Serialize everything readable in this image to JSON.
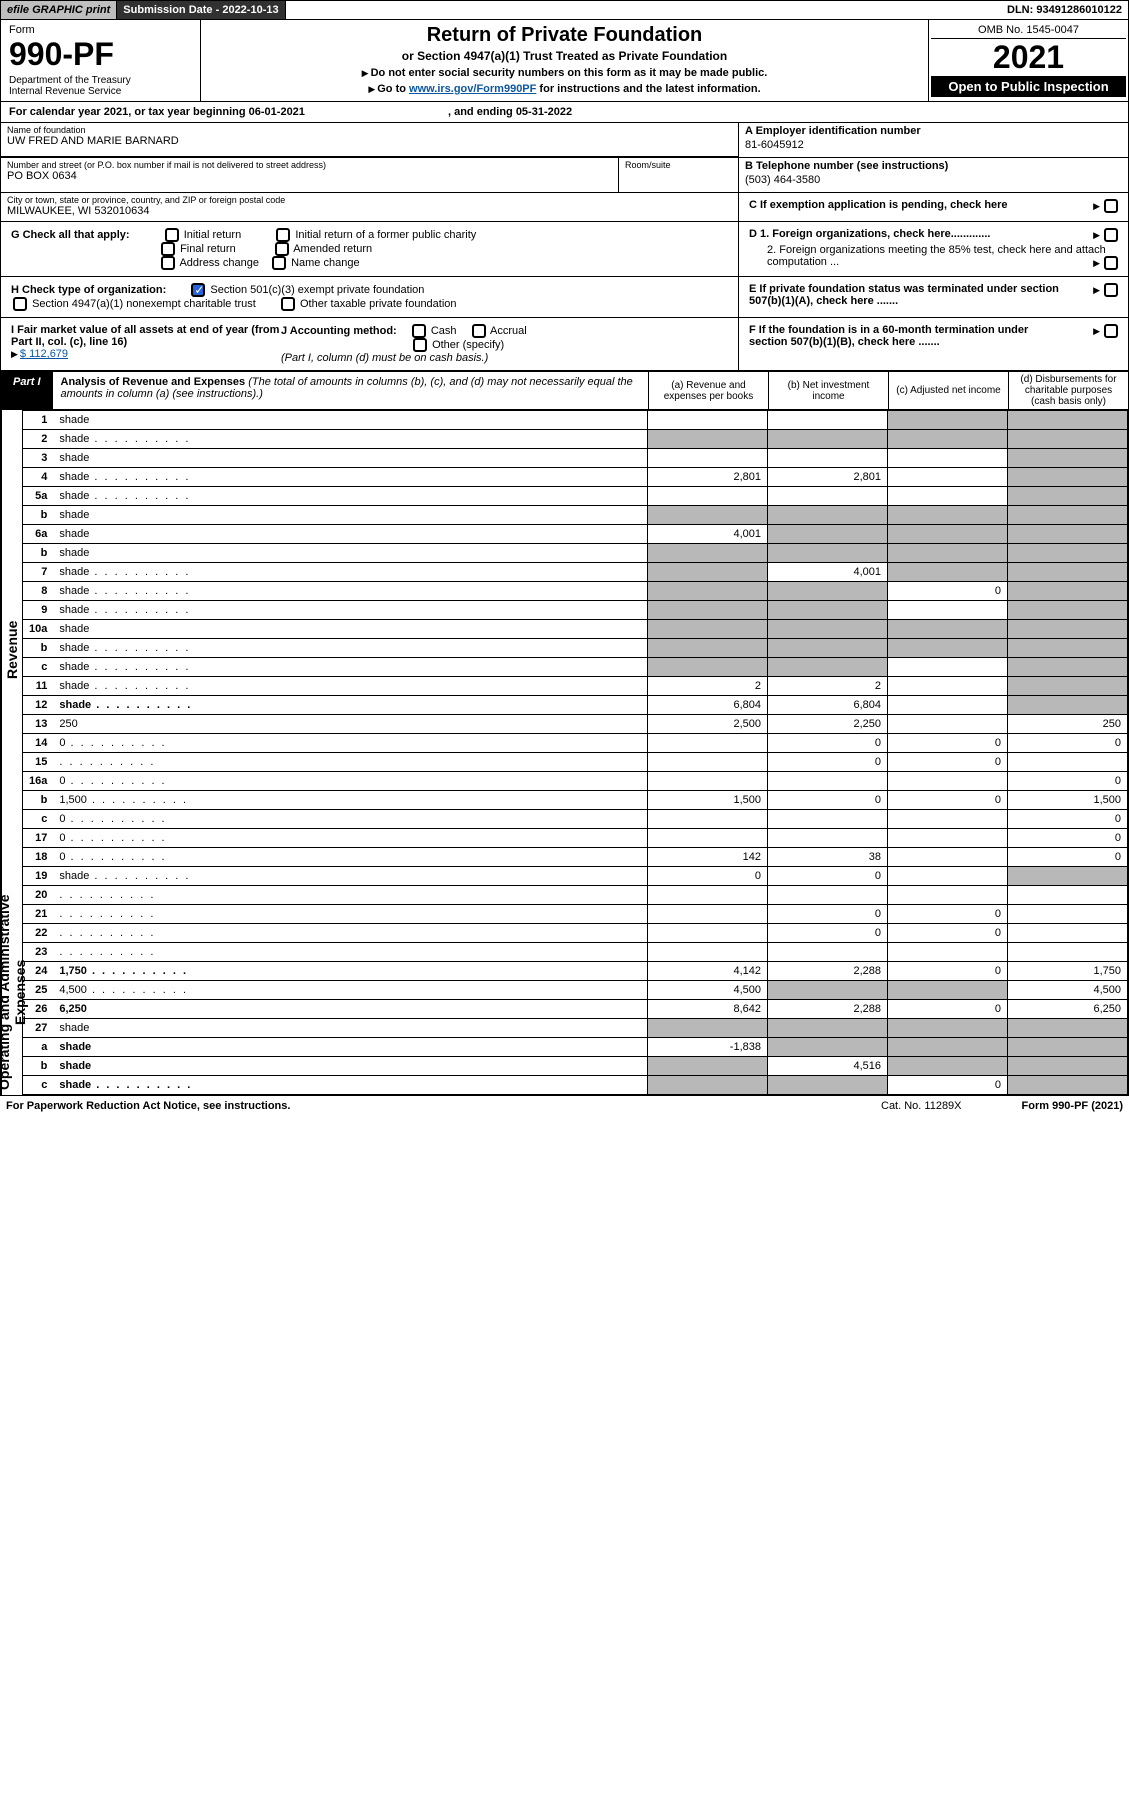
{
  "topbar": {
    "efile": "efile GRAPHIC print",
    "subdate_lbl": "Submission Date - ",
    "subdate": "2022-10-13",
    "dln_lbl": "DLN: ",
    "dln": "93491286010122"
  },
  "header": {
    "form_word": "Form",
    "form_num": "990-PF",
    "dept": "Department of the Treasury",
    "irs": "Internal Revenue Service",
    "title": "Return of Private Foundation",
    "subtitle": "or Section 4947(a)(1) Trust Treated as Private Foundation",
    "instr1": "Do not enter social security numbers on this form as it may be made public.",
    "instr2_pre": "Go to ",
    "instr2_link": "www.irs.gov/Form990PF",
    "instr2_post": " for instructions and the latest information.",
    "omb": "OMB No. 1545-0047",
    "year": "2021",
    "inspect": "Open to Public Inspection"
  },
  "calyr": {
    "text": "For calendar year 2021, or tax year beginning 06-01-2021",
    "mid": ", and ending 05-31-2022"
  },
  "entity": {
    "name_lbl": "Name of foundation",
    "name": "UW FRED AND MARIE BARNARD",
    "addr_lbl": "Number and street (or P.O. box number if mail is not delivered to street address)",
    "addr": "PO BOX 0634",
    "room_lbl": "Room/suite",
    "city_lbl": "City or town, state or province, country, and ZIP or foreign postal code",
    "city": "MILWAUKEE, WI  532010634",
    "ein_lbl": "A Employer identification number",
    "ein": "81-6045912",
    "tel_lbl": "B Telephone number (see instructions)",
    "tel": "(503) 464-3580",
    "c": "C If exemption application is pending, check here",
    "d1": "D 1. Foreign organizations, check here.............",
    "d2": "2. Foreign organizations meeting the 85% test, check here and attach computation ...",
    "e": "E  If private foundation status was terminated under section 507(b)(1)(A), check here .......",
    "f": "F  If the foundation is in a 60-month termination under section 507(b)(1)(B), check here .......",
    "g_lbl": "G Check all that apply:",
    "g_opts": [
      "Initial return",
      "Initial return of a former public charity",
      "Final return",
      "Amended return",
      "Address change",
      "Name change"
    ],
    "h_lbl": "H Check type of organization:",
    "h1": "Section 501(c)(3) exempt private foundation",
    "h2": "Section 4947(a)(1) nonexempt charitable trust",
    "h3": "Other taxable private foundation",
    "i_lbl": "I Fair market value of all assets at end of year (from Part II, col. (c), line 16)",
    "i_val": "$  112,679",
    "j_lbl": "J Accounting method:",
    "j_cash": "Cash",
    "j_accr": "Accrual",
    "j_other": "Other (specify)",
    "j_note": "(Part I, column (d) must be on cash basis.)"
  },
  "part1": {
    "label": "Part I",
    "title": "Analysis of Revenue and Expenses",
    "title_note": " (The total of amounts in columns (b), (c), and (d) may not necessarily equal the amounts in column (a) (see instructions).)",
    "col_a": "(a)   Revenue and expenses per books",
    "col_b": "(b)   Net investment income",
    "col_c": "(c)   Adjusted net income",
    "col_d": "(d)  Disbursements for charitable purposes (cash basis only)"
  },
  "side": {
    "rev": "Revenue",
    "exp": "Operating and Administrative Expenses"
  },
  "rows": [
    {
      "n": "1",
      "d": "shade",
      "a": "",
      "b": "",
      "c": "shade"
    },
    {
      "n": "2",
      "d": "shade",
      "dots": true,
      "a": "shade",
      "b": "shade",
      "c": "shade"
    },
    {
      "n": "3",
      "d": "shade",
      "a": "",
      "b": "",
      "c": ""
    },
    {
      "n": "4",
      "d": "shade",
      "dots": true,
      "a": "2,801",
      "b": "2,801",
      "c": ""
    },
    {
      "n": "5a",
      "d": "shade",
      "dots": true,
      "a": "",
      "b": "",
      "c": ""
    },
    {
      "n": "b",
      "d": "shade",
      "a": "shade",
      "b": "shade",
      "c": "shade"
    },
    {
      "n": "6a",
      "d": "shade",
      "a": "4,001",
      "b": "shade",
      "c": "shade"
    },
    {
      "n": "b",
      "d": "shade",
      "a": "shade",
      "b": "shade",
      "c": "shade"
    },
    {
      "n": "7",
      "d": "shade",
      "dots": true,
      "a": "shade",
      "b": "4,001",
      "c": "shade"
    },
    {
      "n": "8",
      "d": "shade",
      "dots": true,
      "a": "shade",
      "b": "shade",
      "c": "0"
    },
    {
      "n": "9",
      "d": "shade",
      "dots": true,
      "a": "shade",
      "b": "shade",
      "c": ""
    },
    {
      "n": "10a",
      "d": "shade",
      "a": "shade",
      "b": "shade",
      "c": "shade"
    },
    {
      "n": "b",
      "d": "shade",
      "dots": true,
      "a": "shade",
      "b": "shade",
      "c": "shade"
    },
    {
      "n": "c",
      "d": "shade",
      "dots": true,
      "a": "shade",
      "b": "shade",
      "c": ""
    },
    {
      "n": "11",
      "d": "shade",
      "dots": true,
      "a": "2",
      "b": "2",
      "c": ""
    },
    {
      "n": "12",
      "d": "shade",
      "bold": true,
      "dots": true,
      "a": "6,804",
      "b": "6,804",
      "c": ""
    },
    {
      "n": "13",
      "d": "250",
      "a": "2,500",
      "b": "2,250",
      "c": ""
    },
    {
      "n": "14",
      "d": "0",
      "dots": true,
      "a": "",
      "b": "0",
      "c": "0"
    },
    {
      "n": "15",
      "d": "",
      "dots": true,
      "a": "",
      "b": "0",
      "c": "0"
    },
    {
      "n": "16a",
      "d": "0",
      "dots": true,
      "a": "",
      "b": "",
      "c": ""
    },
    {
      "n": "b",
      "d": "1,500",
      "dots": true,
      "a": "1,500",
      "b": "0",
      "c": "0"
    },
    {
      "n": "c",
      "d": "0",
      "dots": true,
      "a": "",
      "b": "",
      "c": ""
    },
    {
      "n": "17",
      "d": "0",
      "dots": true,
      "a": "",
      "b": "",
      "c": ""
    },
    {
      "n": "18",
      "d": "0",
      "dots": true,
      "a": "142",
      "b": "38",
      "c": ""
    },
    {
      "n": "19",
      "d": "shade",
      "dots": true,
      "a": "0",
      "b": "0",
      "c": ""
    },
    {
      "n": "20",
      "d": "",
      "dots": true,
      "a": "",
      "b": "",
      "c": ""
    },
    {
      "n": "21",
      "d": "",
      "dots": true,
      "a": "",
      "b": "0",
      "c": "0"
    },
    {
      "n": "22",
      "d": "",
      "dots": true,
      "a": "",
      "b": "0",
      "c": "0"
    },
    {
      "n": "23",
      "d": "",
      "dots": true,
      "a": "",
      "b": "",
      "c": ""
    },
    {
      "n": "24",
      "d": "1,750",
      "bold": true,
      "dots": true,
      "a": "4,142",
      "b": "2,288",
      "c": "0"
    },
    {
      "n": "25",
      "d": "4,500",
      "dots": true,
      "a": "4,500",
      "b": "shade",
      "c": "shade"
    },
    {
      "n": "26",
      "d": "6,250",
      "bold": true,
      "a": "8,642",
      "b": "2,288",
      "c": "0"
    },
    {
      "n": "27",
      "d": "shade",
      "a": "shade",
      "b": "shade",
      "c": "shade"
    },
    {
      "n": "a",
      "d": "shade",
      "bold": true,
      "a": "-1,838",
      "b": "shade",
      "c": "shade"
    },
    {
      "n": "b",
      "d": "shade",
      "bold": true,
      "a": "shade",
      "b": "4,516",
      "c": "shade"
    },
    {
      "n": "c",
      "d": "shade",
      "bold": true,
      "dots": true,
      "a": "shade",
      "b": "shade",
      "c": "0"
    }
  ],
  "footer": {
    "left": "For Paperwork Reduction Act Notice, see instructions.",
    "mid": "Cat. No. 11289X",
    "right": "Form 990-PF (2021)"
  },
  "colors": {
    "shade": "#b8b8b8",
    "link": "#0b57a4",
    "topbar_dark": "#313131",
    "check_blue": "#2962d9"
  }
}
